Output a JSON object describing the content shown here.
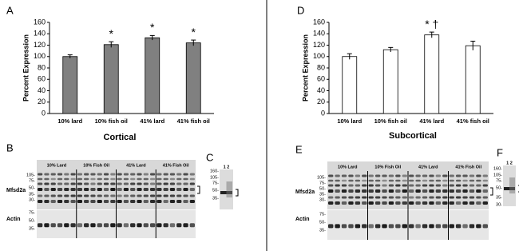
{
  "chart_data": [
    {
      "type": "bar",
      "panel": "A",
      "x_label": "Cortical",
      "y_label": "Percent Expression",
      "categories": [
        "10% lard",
        "10% fish oil",
        "41% lard",
        "41% fish oil"
      ],
      "series": [
        {
          "color": "#808080",
          "edgecolor": "#000000",
          "values": [
            100,
            121,
            133,
            124
          ],
          "errors": [
            3,
            5,
            4,
            5
          ]
        }
      ],
      "annotations": [
        {
          "category": "10% fish oil",
          "text": "*"
        },
        {
          "category": "41% lard",
          "text": "*"
        },
        {
          "category": "41% fish oil",
          "text": "*"
        }
      ],
      "ylim": [
        0,
        160
      ],
      "yticks": [
        0,
        20,
        40,
        60,
        80,
        100,
        120,
        140,
        160
      ]
    },
    {
      "type": "bar",
      "panel": "D",
      "x_label": "Subcortical",
      "y_label": "Percent Expression",
      "categories": [
        "10% lard",
        "10% fish oil",
        "41% lard",
        "41% fish oil"
      ],
      "series": [
        {
          "color": "#ffffff",
          "edgecolor": "#000000",
          "values": [
            100,
            112,
            138,
            119
          ],
          "errors": [
            5,
            4,
            5,
            8
          ]
        }
      ],
      "annotations": [
        {
          "category": "41% lard",
          "text": "* †"
        }
      ],
      "ylim": [
        0,
        160
      ],
      "yticks": [
        0,
        20,
        40,
        60,
        80,
        100,
        120,
        140,
        160
      ]
    }
  ],
  "blots": [
    {
      "panel": "B",
      "groups": [
        "10% Lard",
        "10% Fish Oil",
        "41% Lard",
        "41% Fish Oil"
      ],
      "rows": [
        "Mfsd2a",
        "Actin"
      ],
      "markers": [
        "105-",
        "75-",
        "50-",
        "35-",
        "30-"
      ],
      "actin_markers": [
        "75-",
        "50-",
        "35-"
      ]
    },
    {
      "panel": "C",
      "lanes": "1 2",
      "markers": [
        "160-",
        "105-",
        "75-",
        "50-",
        "35-"
      ]
    },
    {
      "panel": "E",
      "groups": [
        "10% Lard",
        "10% Fish Oil",
        "41% Lard",
        "41% Fish Oil"
      ],
      "rows": [
        "Mfsd2a",
        "Actin"
      ],
      "markers": [
        "105-",
        "75-",
        "50-",
        "35-",
        "30-"
      ],
      "actin_markers": [
        "75-",
        "50-",
        "35-"
      ]
    },
    {
      "panel": "F",
      "lanes": "1 2",
      "markers": [
        "160-",
        "105-",
        "75-",
        "50-",
        "35-",
        "30-"
      ]
    }
  ]
}
